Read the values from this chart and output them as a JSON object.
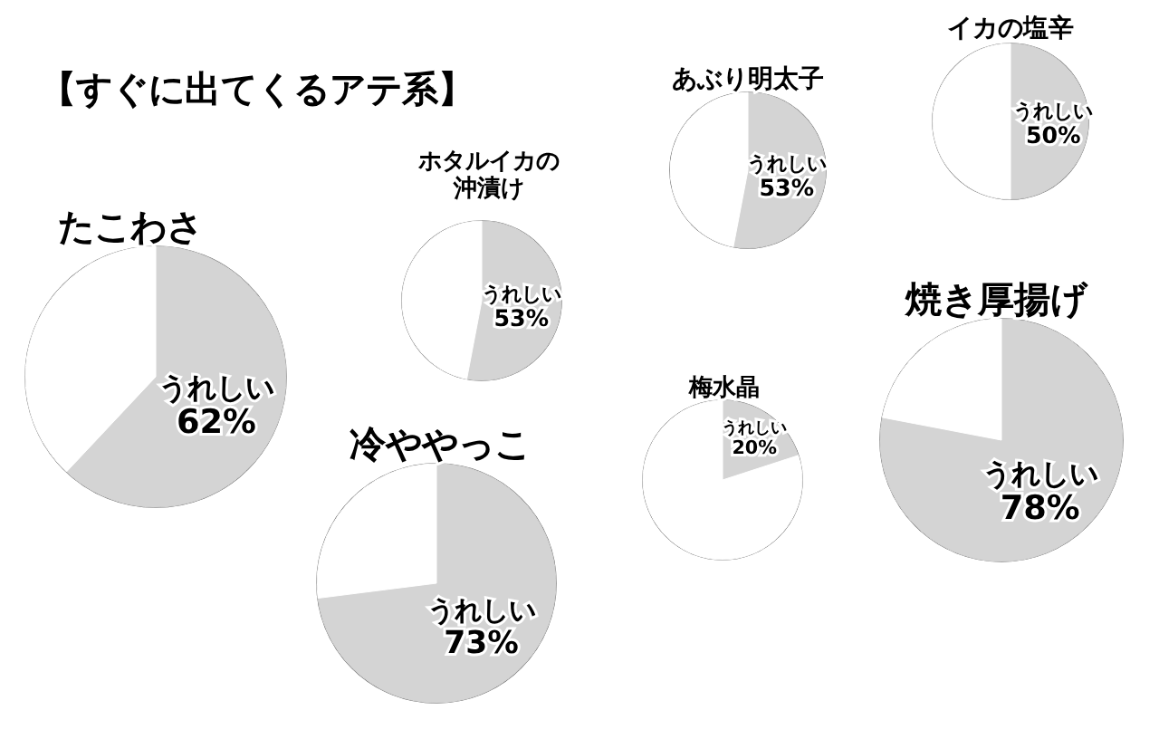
{
  "chart_data": [
    {
      "type": "other",
      "title": "【すぐに出てくるアテ系】"
    },
    {
      "type": "pie",
      "title": "たこわさ",
      "categories": [
        "うれしい",
        null
      ],
      "values": [
        62,
        38
      ],
      "colors": [
        "#d4d4d4",
        "#ffffff"
      ],
      "value_labels": [
        "62%",
        null
      ]
    },
    {
      "type": "pie",
      "title": "ホタルイカの沖漬け",
      "categories": [
        "うれしい",
        null
      ],
      "values": [
        53,
        47
      ],
      "colors": [
        "#d4d4d4",
        "#ffffff"
      ],
      "value_labels": [
        "53%",
        null
      ]
    },
    {
      "type": "pie",
      "title": "あぶり明太子",
      "categories": [
        "うれしい",
        null
      ],
      "values": [
        53,
        47
      ],
      "colors": [
        "#d4d4d4",
        "#ffffff"
      ],
      "value_labels": [
        "53%",
        null
      ]
    },
    {
      "type": "pie",
      "title": "イカの塩辛",
      "categories": [
        "うれしい",
        null
      ],
      "values": [
        50,
        50
      ],
      "colors": [
        "#d4d4d4",
        "#ffffff"
      ],
      "value_labels": [
        "50%",
        null
      ]
    },
    {
      "type": "pie",
      "title": "冷ややっこ",
      "categories": [
        "うれしい",
        null
      ],
      "values": [
        73,
        27
      ],
      "colors": [
        "#d4d4d4",
        "#ffffff"
      ],
      "value_labels": [
        "73%",
        null
      ]
    },
    {
      "type": "pie",
      "title": "梅水晶",
      "categories": [
        "うれしい",
        null
      ],
      "values": [
        20,
        80
      ],
      "colors": [
        "#d4d4d4",
        "#ffffff"
      ],
      "value_labels": [
        "20%",
        null
      ]
    },
    {
      "type": "pie",
      "title": "焼き厚揚げ",
      "categories": [
        "うれしい",
        null
      ],
      "values": [
        78,
        22
      ],
      "colors": [
        "#d4d4d4",
        "#ffffff"
      ],
      "value_labels": [
        "78%",
        null
      ]
    }
  ]
}
